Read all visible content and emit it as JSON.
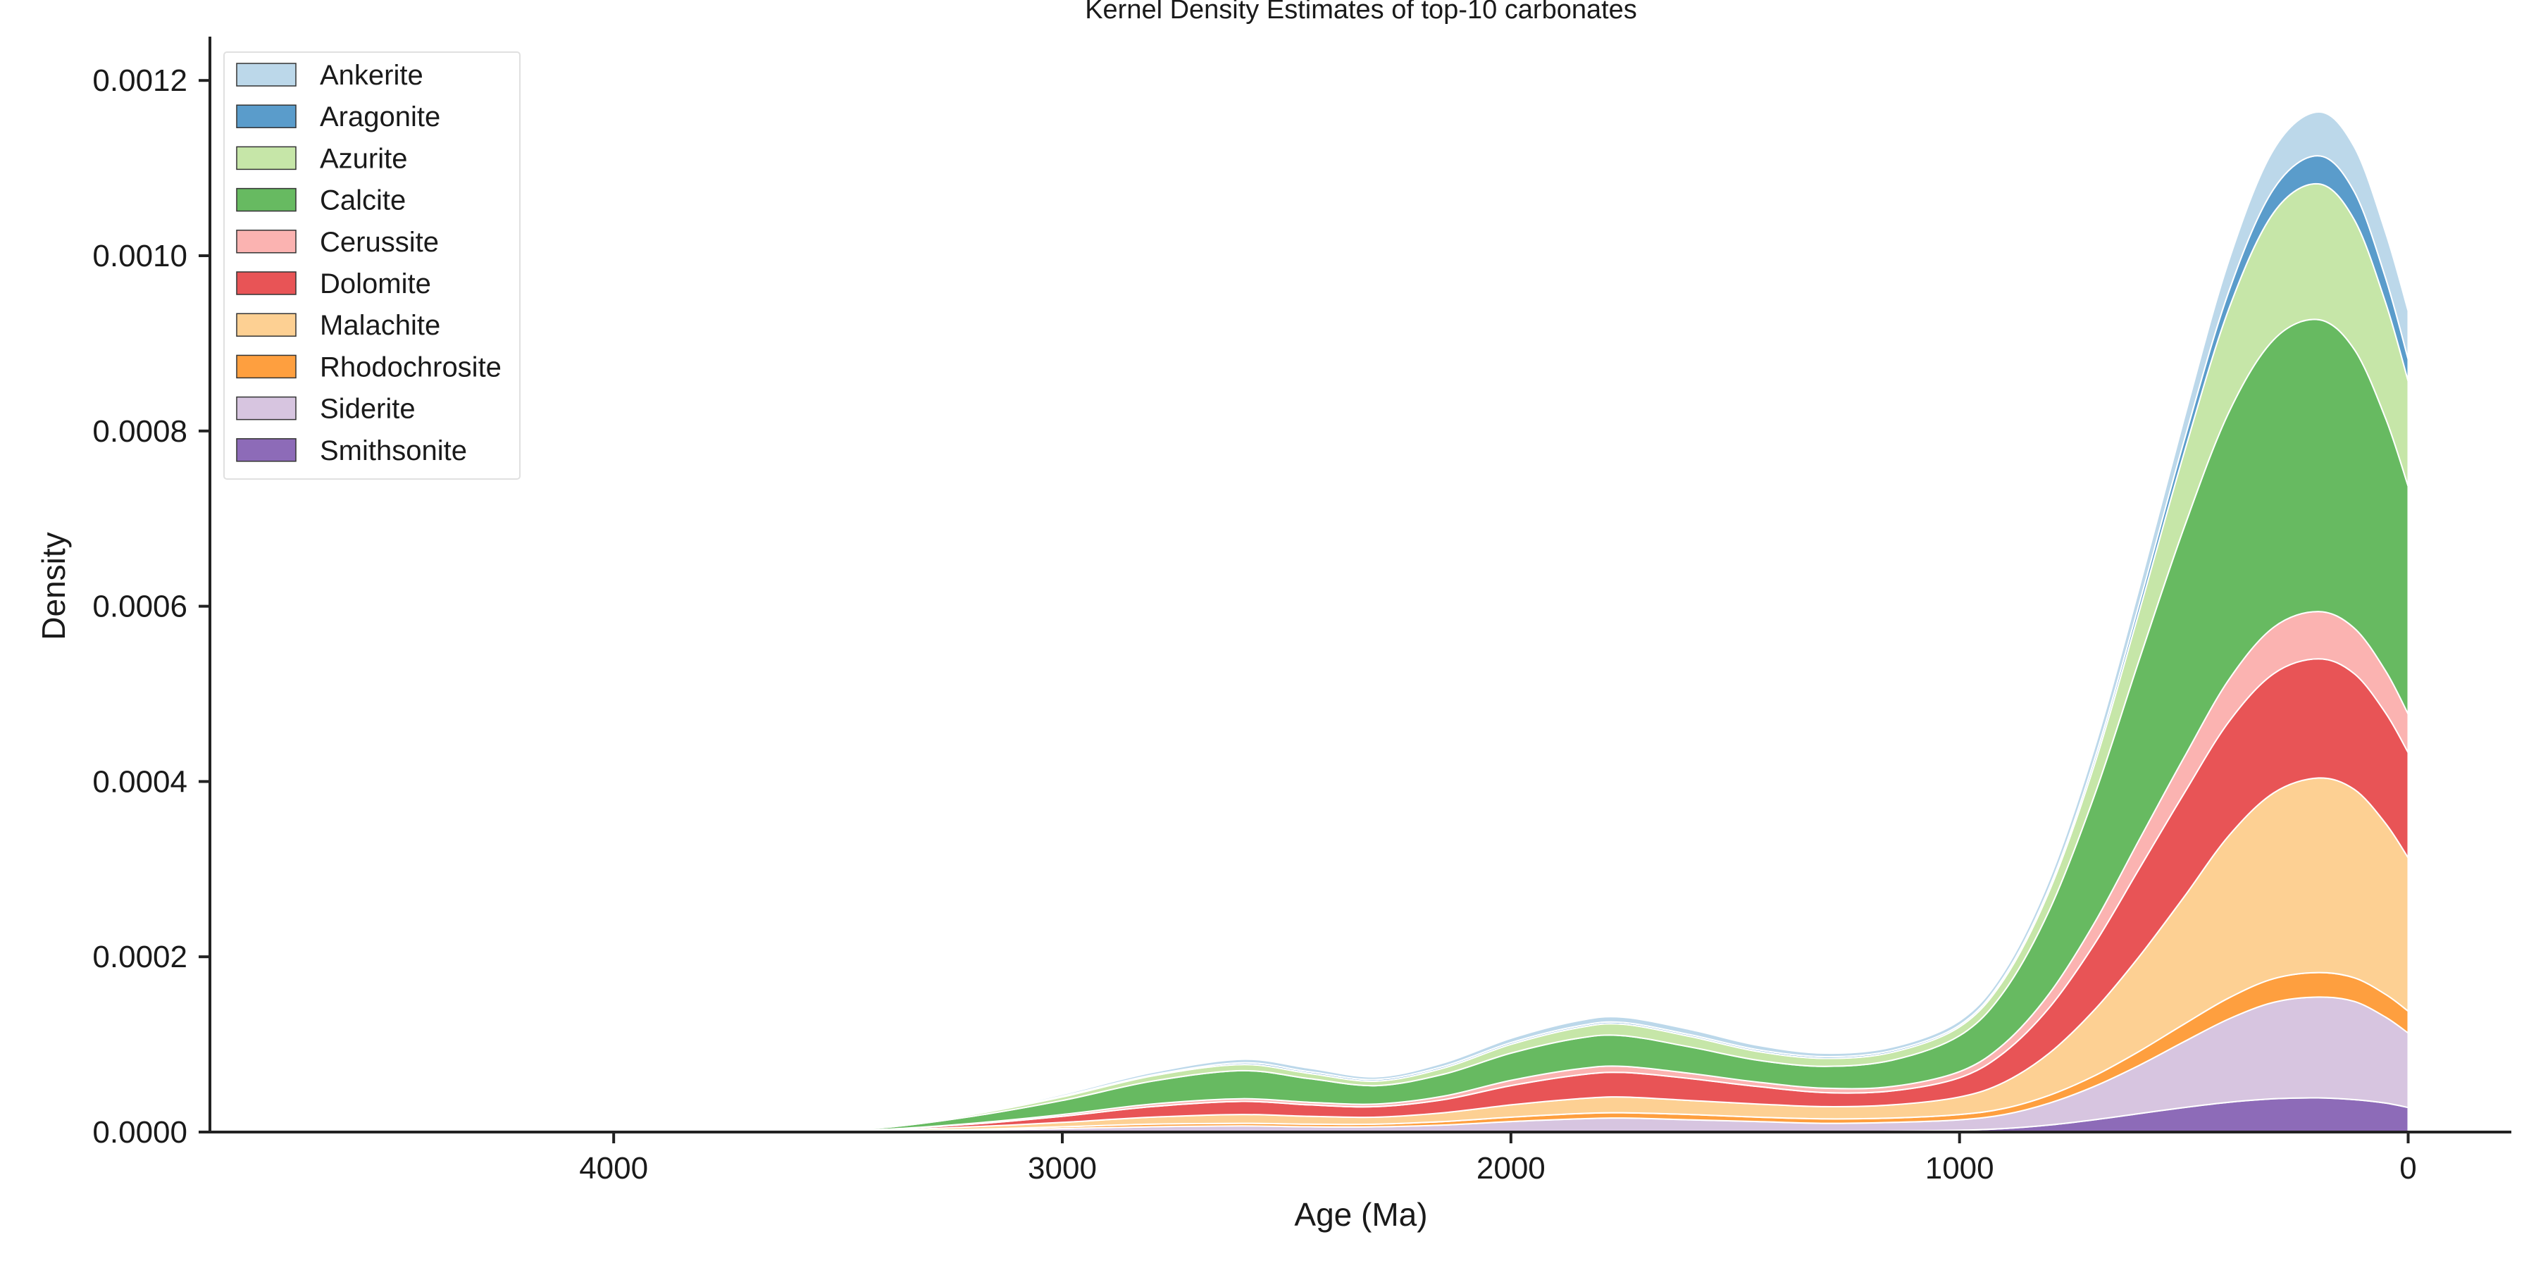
{
  "chart_data": {
    "type": "area",
    "stacked": true,
    "title": "Kernel Density Estimates of top-10 carbonates",
    "xlabel": "Age (Ma)",
    "ylabel": "Density",
    "xlim": [
      4900,
      -230
    ],
    "ylim": [
      0,
      0.00125
    ],
    "x_reversed": true,
    "x_ticks": [
      4000,
      3000,
      2000,
      1000,
      0
    ],
    "y_ticks": [
      0.0,
      0.0002,
      0.0004,
      0.0006,
      0.0008,
      0.001,
      0.0012
    ],
    "x_tick_labels": [
      "4000",
      "3000",
      "2000",
      "1000",
      "0"
    ],
    "y_tick_labels": [
      "0.0000",
      "0.0002",
      "0.0004",
      "0.0006",
      "0.0008",
      "0.0010",
      "0.0012"
    ],
    "legend_position": "top-left",
    "grid": false,
    "x": [
      4600,
      4300,
      4100,
      4000,
      3800,
      3600,
      3400,
      3200,
      3000,
      2800,
      2600,
      2450,
      2300,
      2150,
      2000,
      1850,
      1750,
      1600,
      1450,
      1300,
      1150,
      1000,
      900,
      800,
      700,
      600,
      500,
      400,
      300,
      200,
      120,
      50,
      0
    ],
    "series": [
      {
        "name": "Smithsonite",
        "color": "#8d6bb8",
        "values": [
          0,
          0,
          0,
          0,
          0,
          0,
          0,
          0,
          0,
          0,
          0,
          0,
          0,
          0,
          0,
          0,
          0,
          0,
          0,
          0,
          1e-06,
          2e-06,
          4e-06,
          8e-06,
          1.4e-05,
          2.1e-05,
          2.8e-05,
          3.4e-05,
          3.8e-05,
          3.9e-05,
          3.7e-05,
          3.3e-05,
          2.8e-05
        ]
      },
      {
        "name": "Siderite",
        "color": "#d7c5e0",
        "values": [
          0,
          0,
          0,
          0,
          0,
          0,
          1e-06,
          2e-06,
          4e-06,
          6e-06,
          7e-06,
          6e-06,
          6e-06,
          8e-06,
          1.2e-05,
          1.5e-05,
          1.6e-05,
          1.4e-05,
          1.2e-05,
          1e-05,
          1e-05,
          1.2e-05,
          1.6e-05,
          2.5e-05,
          3.8e-05,
          5.5e-05,
          7.5e-05,
          9.5e-05,
          0.00011,
          0.000115,
          0.000112,
          9.8e-05,
          8.5e-05
        ]
      },
      {
        "name": "Rhodochrosite",
        "color": "#fe9f3f",
        "values": [
          0,
          0,
          0,
          0,
          0,
          0,
          0,
          1e-06,
          2e-06,
          3e-06,
          3e-06,
          3e-06,
          3e-06,
          4e-06,
          5e-06,
          6e-06,
          6e-06,
          6e-06,
          5e-06,
          5e-06,
          5e-06,
          6e-06,
          7e-06,
          9e-06,
          1.2e-05,
          1.6e-05,
          2e-05,
          2.4e-05,
          2.7e-05,
          2.8e-05,
          2.7e-05,
          2.6e-05,
          2.5e-05
        ]
      },
      {
        "name": "Malachite",
        "color": "#fdd093",
        "values": [
          0,
          0,
          0,
          0,
          0,
          0,
          1e-06,
          3e-06,
          5e-06,
          8e-06,
          1e-05,
          9e-06,
          8e-06,
          1e-05,
          1.4e-05,
          1.7e-05,
          1.8e-05,
          1.6e-05,
          1.5e-05,
          1.4e-05,
          1.5e-05,
          2e-05,
          3e-05,
          4.8e-05,
          7.5e-05,
          0.000108,
          0.000145,
          0.000185,
          0.000212,
          0.000222,
          0.000215,
          0.000195,
          0.000175
        ]
      },
      {
        "name": "Dolomite",
        "color": "#e85456",
        "values": [
          0,
          0,
          0,
          0,
          0,
          0,
          1e-06,
          3e-06,
          7e-06,
          1.2e-05,
          1.5e-05,
          1.3e-05,
          1.2e-05,
          1.5e-05,
          2.2e-05,
          2.7e-05,
          2.8e-05,
          2.5e-05,
          2e-05,
          1.6e-05,
          1.6e-05,
          2.2e-05,
          3.4e-05,
          5.2e-05,
          7.5e-05,
          0.0001,
          0.000118,
          0.00013,
          0.000136,
          0.000136,
          0.000132,
          0.000126,
          0.00012
        ]
      },
      {
        "name": "Cerussite",
        "color": "#fbb3b1",
        "values": [
          0,
          0,
          0,
          0,
          0,
          0,
          0,
          1e-06,
          2e-06,
          3e-06,
          3e-06,
          3e-06,
          3e-06,
          4e-06,
          6e-06,
          7e-06,
          7e-06,
          6e-06,
          5e-06,
          5e-06,
          5e-06,
          7e-06,
          1e-05,
          1.6e-05,
          2.4e-05,
          3.3e-05,
          4.1e-05,
          4.8e-05,
          5.3e-05,
          5.4e-05,
          5.2e-05,
          4.8e-05,
          4.4e-05
        ]
      },
      {
        "name": "Calcite",
        "color": "#67ba61",
        "values": [
          0,
          0,
          0,
          0,
          0,
          0,
          2e-06,
          8e-06,
          1.6e-05,
          2.6e-05,
          3.2e-05,
          2.7e-05,
          2.1e-05,
          2.5e-05,
          3.1e-05,
          3.5e-05,
          3.5e-05,
          3e-05,
          2.5e-05,
          2.5e-05,
          3e-05,
          4.1e-05,
          6e-05,
          9.5e-05,
          0.000145,
          0.000205,
          0.000262,
          0.000305,
          0.000328,
          0.000333,
          0.000318,
          0.000288,
          0.00026
        ]
      },
      {
        "name": "Azurite",
        "color": "#c6e6a8",
        "values": [
          0,
          1e-06,
          2e-06,
          2e-06,
          1e-06,
          0,
          1e-06,
          2e-06,
          4e-06,
          6e-06,
          7e-06,
          6e-06,
          5e-06,
          7e-06,
          1e-05,
          1.2e-05,
          1.3e-05,
          1.2e-05,
          1e-05,
          9e-06,
          9e-06,
          1e-05,
          1.4e-05,
          2.2e-05,
          3.5e-05,
          5.5e-05,
          8.5e-05,
          0.000118,
          0.000145,
          0.000155,
          0.000148,
          0.000132,
          0.00012
        ]
      },
      {
        "name": "Aragonite",
        "color": "#5a9ccb",
        "values": [
          0,
          0,
          0,
          0,
          0,
          0,
          0,
          0,
          1e-06,
          1e-06,
          2e-06,
          2e-06,
          2e-06,
          2e-06,
          2e-06,
          2e-06,
          2e-06,
          2e-06,
          2e-06,
          2e-06,
          2e-06,
          2e-06,
          3e-06,
          4e-06,
          6e-06,
          9e-06,
          1.4e-05,
          2e-05,
          2.7e-05,
          3.2e-05,
          3.2e-05,
          2.8e-05,
          2.5e-05
        ]
      },
      {
        "name": "Ankerite",
        "color": "#bcd8ea",
        "values": [
          0,
          0,
          0,
          0,
          0,
          0,
          0,
          1e-06,
          2e-06,
          3e-06,
          4e-06,
          4e-06,
          3e-06,
          4e-06,
          5e-06,
          6e-06,
          6e-06,
          6e-06,
          5e-06,
          4e-06,
          4e-06,
          5e-06,
          6e-06,
          9e-06,
          1.3e-05,
          1.8e-05,
          2.5e-05,
          3.5e-05,
          4.5e-05,
          5e-05,
          5.1e-05,
          5.2e-05,
          5.5e-05
        ]
      }
    ],
    "legend_order": [
      "Ankerite",
      "Aragonite",
      "Azurite",
      "Calcite",
      "Cerussite",
      "Dolomite",
      "Malachite",
      "Rhodochrosite",
      "Siderite",
      "Smithsonite"
    ]
  }
}
